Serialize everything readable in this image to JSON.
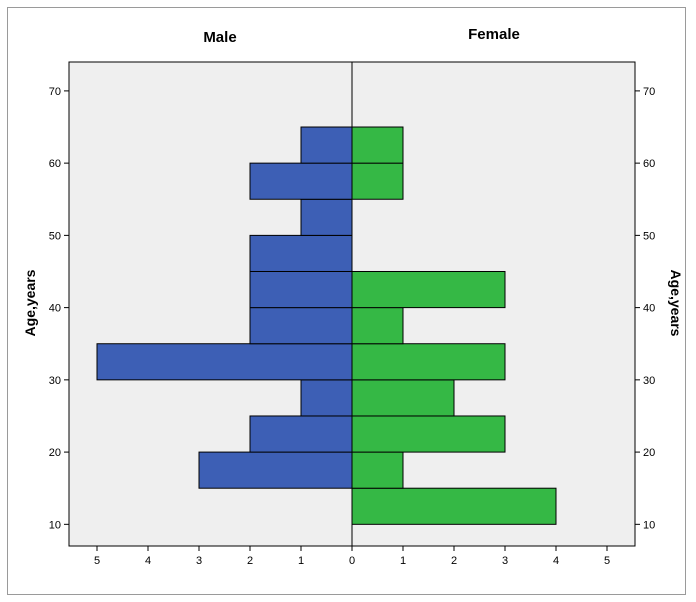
{
  "chart_data": {
    "type": "bar",
    "orientation": "horizontal-population-pyramid",
    "panels": {
      "left": "Male",
      "right": "Female"
    },
    "y_axis": {
      "label_left": "Age,years",
      "label_right": "Age,years",
      "range": [
        7,
        74
      ],
      "ticks": [
        10,
        20,
        30,
        40,
        50,
        60,
        70
      ]
    },
    "x_axis": {
      "range": [
        0,
        5
      ],
      "ticks_left": [
        5,
        4,
        3,
        2,
        1,
        0
      ],
      "ticks_right": [
        1,
        2,
        3,
        4,
        5
      ]
    },
    "bin_width": 5,
    "series": [
      {
        "name": "Male",
        "color": "#3d5fb5",
        "bins": [
          {
            "from": 15,
            "to": 20,
            "count": 3
          },
          {
            "from": 20,
            "to": 25,
            "count": 2
          },
          {
            "from": 25,
            "to": 30,
            "count": 1
          },
          {
            "from": 30,
            "to": 35,
            "count": 5
          },
          {
            "from": 35,
            "to": 40,
            "count": 2
          },
          {
            "from": 40,
            "to": 45,
            "count": 2
          },
          {
            "from": 45,
            "to": 50,
            "count": 2
          },
          {
            "from": 50,
            "to": 55,
            "count": 1
          },
          {
            "from": 55,
            "to": 60,
            "count": 2
          },
          {
            "from": 60,
            "to": 65,
            "count": 1
          }
        ]
      },
      {
        "name": "Female",
        "color": "#35b845",
        "bins": [
          {
            "from": 10,
            "to": 15,
            "count": 4
          },
          {
            "from": 15,
            "to": 20,
            "count": 1
          },
          {
            "from": 20,
            "to": 25,
            "count": 3
          },
          {
            "from": 25,
            "to": 30,
            "count": 2
          },
          {
            "from": 30,
            "to": 35,
            "count": 3
          },
          {
            "from": 35,
            "to": 40,
            "count": 1
          },
          {
            "from": 40,
            "to": 45,
            "count": 3
          },
          {
            "from": 55,
            "to": 60,
            "count": 1
          },
          {
            "from": 60,
            "to": 65,
            "count": 1
          }
        ]
      }
    ],
    "plot_background": "#efefef",
    "grid": false
  }
}
